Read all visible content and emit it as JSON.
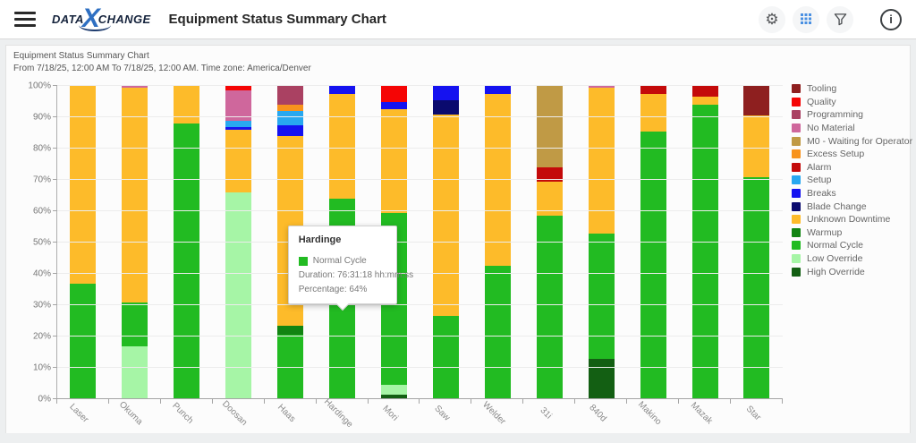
{
  "header": {
    "logo": {
      "part1": "DATA",
      "x": "X",
      "part2": "CHANGE"
    },
    "title": "Equipment Status Summary Chart",
    "icons": {
      "menu": "hamburger",
      "settings": "gear",
      "grid": "table-grid",
      "filter": "funnel",
      "info": "info-circle"
    }
  },
  "chart_header": {
    "line1": "Equipment Status Summary Chart",
    "line2": "From 7/18/25, 12:00 AM To 7/18/25, 12:00 AM. Time zone: America/Denver"
  },
  "tooltip": {
    "title": "Hardinge",
    "series": "Normal Cycle",
    "duration": "Duration: 76:31:18 hh:mm:ss",
    "percentage": "Percentage: 64%"
  },
  "chart_data": {
    "type": "bar",
    "stacked": true,
    "unit": "percent",
    "ylim": [
      0,
      100
    ],
    "yticks": [
      "0%",
      "10%",
      "20%",
      "30%",
      "40%",
      "50%",
      "60%",
      "70%",
      "80%",
      "90%",
      "100%"
    ],
    "grid": true,
    "legend_position": "right",
    "colors": {
      "Tooling": "#8E1F1F",
      "Quality": "#F50505",
      "Programming": "#AA4162",
      "No Material": "#CF679C",
      "M0 - Waiting for Operator": "#C09A45",
      "Excess Setup": "#F8931D",
      "Alarm": "#C40A0A",
      "Setup": "#28A8F0",
      "Breaks": "#1512F0",
      "Blade Change": "#0A0A6E",
      "Unknown Downtime": "#FDBB2A",
      "Warmup": "#128412",
      "Normal Cycle": "#22BB22",
      "Low Override": "#A6F5A6",
      "High Override": "#135F13"
    },
    "legend": [
      {
        "label": "Tooling",
        "color": "#8E1F1F"
      },
      {
        "label": "Quality",
        "color": "#F50505"
      },
      {
        "label": "Programming",
        "color": "#AA4162"
      },
      {
        "label": "No Material",
        "color": "#CF679C"
      },
      {
        "label": "M0 - Waiting for Operator",
        "color": "#C09A45"
      },
      {
        "label": "Excess Setup",
        "color": "#F8931D"
      },
      {
        "label": "Alarm",
        "color": "#C40A0A"
      },
      {
        "label": "Setup",
        "color": "#28A8F0"
      },
      {
        "label": "Breaks",
        "color": "#1512F0"
      },
      {
        "label": "Blade Change",
        "color": "#0A0A6E"
      },
      {
        "label": "Unknown Downtime",
        "color": "#FDBB2A"
      },
      {
        "label": "Warmup",
        "color": "#128412"
      },
      {
        "label": "Normal Cycle",
        "color": "#22BB22"
      },
      {
        "label": "Low Override",
        "color": "#A6F5A6"
      },
      {
        "label": "High Override",
        "color": "#135F13"
      }
    ],
    "categories": [
      "Laser",
      "Okuma",
      "Punch",
      "Doosan",
      "Haas",
      "Hardinge",
      "Mori",
      "Saw",
      "Welder",
      "31i",
      "840d",
      "Makino",
      "Mazak",
      "Star"
    ],
    "bars": [
      {
        "name": "Laser",
        "segments": [
          {
            "label": "Normal Cycle",
            "value": 37
          },
          {
            "label": "Unknown Downtime",
            "value": 63
          }
        ]
      },
      {
        "name": "Okuma",
        "segments": [
          {
            "label": "Low Override",
            "value": 17
          },
          {
            "label": "Normal Cycle",
            "value": 14
          },
          {
            "label": "Unknown Downtime",
            "value": 68.5
          },
          {
            "label": "No Material",
            "value": 0.5
          }
        ]
      },
      {
        "name": "Punch",
        "segments": [
          {
            "label": "Normal Cycle",
            "value": 88
          },
          {
            "label": "Unknown Downtime",
            "value": 12
          }
        ]
      },
      {
        "name": "Doosan",
        "segments": [
          {
            "label": "Low Override",
            "value": 66
          },
          {
            "label": "Unknown Downtime",
            "value": 20
          },
          {
            "label": "Breaks",
            "value": 1
          },
          {
            "label": "Setup",
            "value": 2
          },
          {
            "label": "No Material",
            "value": 9.5
          },
          {
            "label": "Quality",
            "value": 1.5
          }
        ]
      },
      {
        "name": "Haas",
        "segments": [
          {
            "label": "Normal Cycle",
            "value": 20.5
          },
          {
            "label": "Warmup",
            "value": 3
          },
          {
            "label": "Unknown Downtime",
            "value": 60.5
          },
          {
            "label": "Breaks",
            "value": 3.5
          },
          {
            "label": "Setup",
            "value": 4.5
          },
          {
            "label": "Excess Setup",
            "value": 2
          },
          {
            "label": "Programming",
            "value": 6
          }
        ]
      },
      {
        "name": "Hardinge",
        "segments": [
          {
            "label": "Normal Cycle",
            "value": 64
          },
          {
            "label": "Unknown Downtime",
            "value": 33.5
          },
          {
            "label": "Breaks",
            "value": 2.5
          }
        ]
      },
      {
        "name": "Mori",
        "segments": [
          {
            "label": "High Override",
            "value": 1.5
          },
          {
            "label": "Low Override",
            "value": 3
          },
          {
            "label": "Normal Cycle",
            "value": 55
          },
          {
            "label": "Unknown Downtime",
            "value": 33
          },
          {
            "label": "Breaks",
            "value": 2.5
          },
          {
            "label": "Quality",
            "value": 5
          }
        ]
      },
      {
        "name": "Saw",
        "segments": [
          {
            "label": "Normal Cycle",
            "value": 26.5
          },
          {
            "label": "Unknown Downtime",
            "value": 64.5
          },
          {
            "label": "Blade Change",
            "value": 4.5
          },
          {
            "label": "Breaks",
            "value": 4.5
          }
        ]
      },
      {
        "name": "Welder",
        "segments": [
          {
            "label": "Normal Cycle",
            "value": 42.5
          },
          {
            "label": "Unknown Downtime",
            "value": 55
          },
          {
            "label": "Breaks",
            "value": 2.5
          }
        ]
      },
      {
        "name": "31i",
        "segments": [
          {
            "label": "Normal Cycle",
            "value": 58.5
          },
          {
            "label": "Unknown Downtime",
            "value": 11
          },
          {
            "label": "Alarm",
            "value": 4.5
          },
          {
            "label": "M0 - Waiting for Operator",
            "value": 26
          }
        ]
      },
      {
        "name": "840d",
        "segments": [
          {
            "label": "High Override",
            "value": 13
          },
          {
            "label": "Normal Cycle",
            "value": 40
          },
          {
            "label": "Unknown Downtime",
            "value": 46.5
          },
          {
            "label": "No Material",
            "value": 0.5
          }
        ]
      },
      {
        "name": "Makino",
        "segments": [
          {
            "label": "Normal Cycle",
            "value": 85.5
          },
          {
            "label": "Unknown Downtime",
            "value": 12
          },
          {
            "label": "Alarm",
            "value": 2.5
          }
        ]
      },
      {
        "name": "Mazak",
        "segments": [
          {
            "label": "Normal Cycle",
            "value": 94
          },
          {
            "label": "Unknown Downtime",
            "value": 2.5
          },
          {
            "label": "Alarm",
            "value": 3.5
          }
        ]
      },
      {
        "name": "Star",
        "segments": [
          {
            "label": "Normal Cycle",
            "value": 71
          },
          {
            "label": "Unknown Downtime",
            "value": 19.5
          },
          {
            "label": "Tooling",
            "value": 9.5
          }
        ]
      }
    ],
    "highlight": {
      "bar": "Hardinge",
      "segment": "Normal Cycle",
      "style": "hatched"
    }
  }
}
